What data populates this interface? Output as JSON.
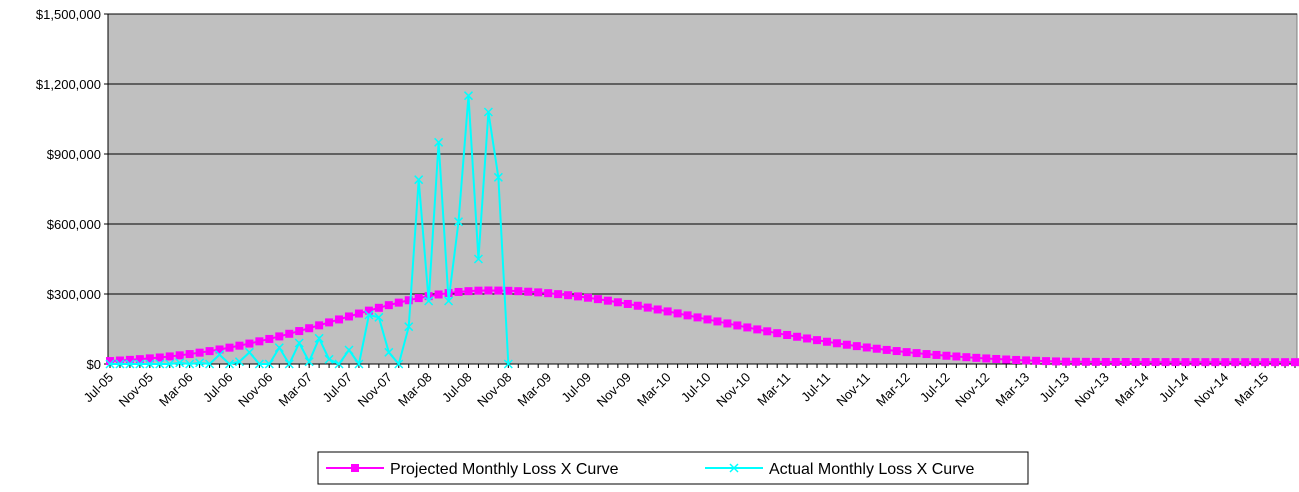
{
  "chart_data": {
    "type": "line",
    "categories": [
      "Jul-05",
      null,
      null,
      null,
      "Nov-05",
      null,
      null,
      null,
      "Mar-06",
      null,
      null,
      null,
      "Jul-06",
      null,
      null,
      null,
      "Nov-06",
      null,
      null,
      null,
      "Mar-07",
      null,
      null,
      null,
      "Jul-07",
      null,
      null,
      null,
      "Nov-07",
      null,
      null,
      null,
      "Mar-08",
      null,
      null,
      null,
      "Jul-08",
      null,
      null,
      null,
      "Nov-08",
      null,
      null,
      null,
      "Mar-09",
      null,
      null,
      null,
      "Jul-09",
      null,
      null,
      null,
      "Nov-09",
      null,
      null,
      null,
      "Mar-10",
      null,
      null,
      null,
      "Jul-10",
      null,
      null,
      null,
      "Nov-10",
      null,
      null,
      null,
      "Mar-11",
      null,
      null,
      null,
      "Jul-11",
      null,
      null,
      null,
      "Nov-11",
      null,
      null,
      null,
      "Mar-12",
      null,
      null,
      null,
      "Jul-12",
      null,
      null,
      null,
      "Nov-12",
      null,
      null,
      null,
      "Mar-13",
      null,
      null,
      null,
      "Jul-13",
      null,
      null,
      null,
      "Nov-13",
      null,
      null,
      null,
      "Mar-14",
      null,
      null,
      null,
      "Jul-14",
      null,
      null,
      null,
      "Nov-14",
      null,
      null,
      null,
      "Mar-15",
      null,
      null,
      null
    ],
    "series": [
      {
        "name": "Projected Monthly Loss X Curve",
        "color": "#ff00ff",
        "marker": "square",
        "values": [
          12700,
          15000,
          17700,
          20700,
          24100,
          28000,
          32400,
          37200,
          42600,
          48600,
          55200,
          62300,
          70100,
          78600,
          87600,
          97200,
          107400,
          118200,
          129500,
          141200,
          153300,
          165700,
          178300,
          191000,
          203700,
          216300,
          228700,
          240800,
          252200,
          263100,
          273200,
          282500,
          290800,
          298000,
          304000,
          308800,
          312200,
          314300,
          315000,
          314700,
          313700,
          312100,
          309800,
          307000,
          303500,
          299400,
          294800,
          289700,
          284100,
          278000,
          271400,
          264500,
          257300,
          249700,
          241800,
          233700,
          225400,
          216900,
          208400,
          199700,
          191000,
          182400,
          173800,
          165200,
          156700,
          148300,
          140100,
          132100,
          124300,
          116700,
          109400,
          102300,
          95400,
          88900,
          82600,
          76600,
          70800,
          65500,
          60300,
          55500,
          50900,
          46700,
          42600,
          38900,
          35400,
          32200,
          29200,
          26400,
          23800,
          21500,
          19300,
          17300,
          15500,
          13800,
          12300,
          11000,
          9800,
          9500,
          9200,
          9000,
          8800,
          8700,
          8600,
          8500,
          8400,
          8300,
          8200,
          8200,
          8100,
          8100,
          8000,
          8000,
          8000,
          7900,
          7900,
          7900,
          7800,
          7800,
          7800,
          7800
        ]
      },
      {
        "name": "Actual Monthly Loss X Curve",
        "color": "#00ffff",
        "marker": "x",
        "values": [
          0,
          0,
          0,
          0,
          0,
          0,
          0,
          5000,
          0,
          5000,
          0,
          40000,
          0,
          10000,
          50000,
          0,
          0,
          70000,
          0,
          90000,
          10000,
          110000,
          20000,
          0,
          60000,
          0,
          210000,
          200000,
          50000,
          0,
          160000,
          790000,
          270000,
          950000,
          270000,
          610000,
          1150000,
          450000,
          1080000,
          800000,
          0,
          null,
          null,
          null,
          null,
          null,
          null,
          null,
          null,
          null,
          null,
          null,
          null,
          null,
          null,
          null,
          null,
          null,
          null,
          null,
          null,
          null,
          null,
          null,
          null,
          null,
          null,
          null,
          null,
          null,
          null,
          null,
          null,
          null,
          null,
          null,
          null,
          null,
          null,
          null,
          null,
          null,
          null,
          null,
          null,
          null,
          null,
          null,
          null,
          null,
          null,
          null,
          null,
          null,
          null,
          null,
          null,
          null,
          null,
          null,
          null,
          null,
          null,
          null,
          null,
          null,
          null,
          null,
          null,
          null,
          null,
          null,
          null,
          null,
          null,
          null,
          null,
          null,
          null,
          null
        ]
      }
    ],
    "ylim": [
      0,
      1500000
    ],
    "yticks": [
      {
        "value": 0,
        "label": "$0"
      },
      {
        "value": 300000,
        "label": "$300,000"
      },
      {
        "value": 600000,
        "label": "$600,000"
      },
      {
        "value": 900000,
        "label": "$900,000"
      },
      {
        "value": 1200000,
        "label": "$1,200,000"
      },
      {
        "value": 1500000,
        "label": "$1,500,000"
      }
    ],
    "grid": true,
    "plot_background": "#c0c0c0",
    "legend": "bottom"
  }
}
